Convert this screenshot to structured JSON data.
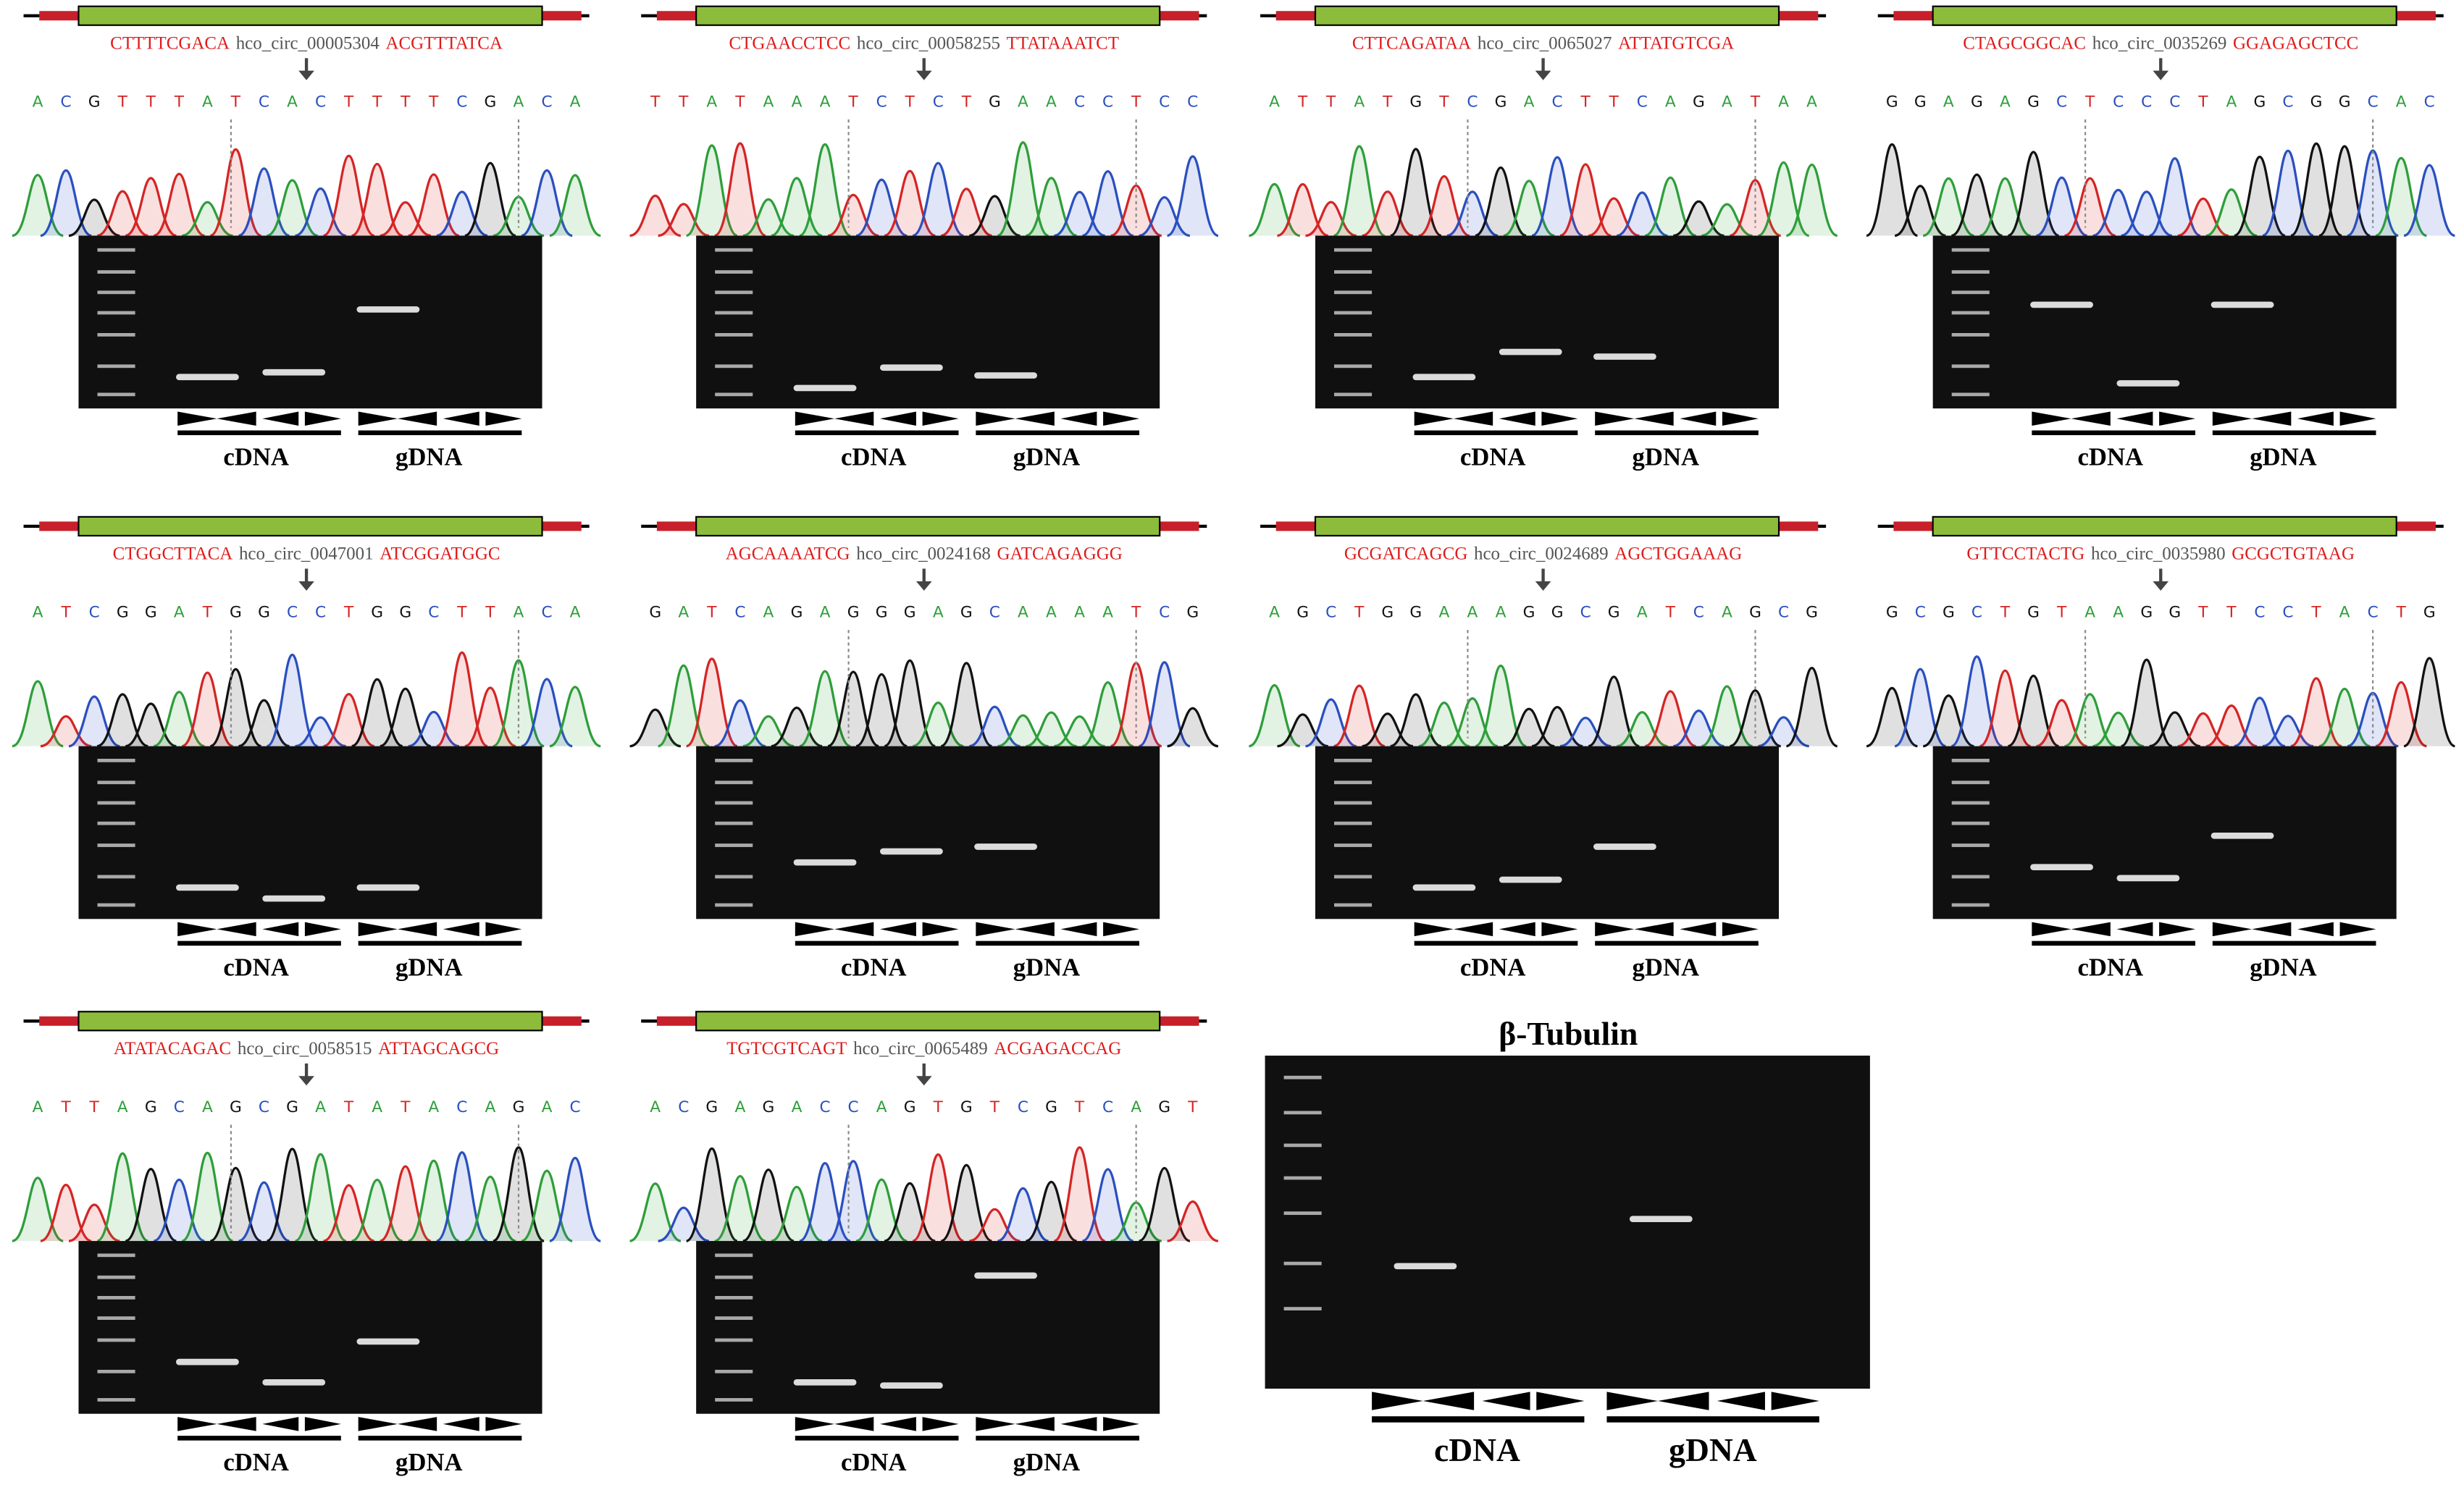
{
  "panels": [
    {
      "left": "CTTTTCGACA",
      "circ_id": "hco_circ_00005304",
      "right": "ACGTTTATCA",
      "sequence": [
        "A",
        "C",
        "G",
        "T",
        "T",
        "T",
        "A",
        "T",
        "C",
        "A",
        "C",
        "T",
        "T",
        "T",
        "T",
        "C",
        "G",
        "A",
        "C",
        "A"
      ],
      "labels": [
        "cDNA",
        "gDNA"
      ]
    },
    {
      "left": "CTGAACCTCC",
      "circ_id": "hco_circ_00058255",
      "right": "TTATAAATCT",
      "sequence": [
        "T",
        "T",
        "A",
        "T",
        "A",
        "A",
        "A",
        "T",
        "C",
        "T",
        "C",
        "T",
        "G",
        "A",
        "A",
        "C",
        "C",
        "T",
        "C",
        "C"
      ],
      "labels": [
        "cDNA",
        "gDNA"
      ]
    },
    {
      "left": "CTTCAGATAA",
      "circ_id": "hco_circ_0065027",
      "right": "ATTATGTCGA",
      "sequence": [
        "A",
        "T",
        "T",
        "A",
        "T",
        "G",
        "T",
        "C",
        "G",
        "A",
        "C",
        "T",
        "T",
        "C",
        "A",
        "G",
        "A",
        "T",
        "A",
        "A"
      ],
      "labels": [
        "cDNA",
        "gDNA"
      ]
    },
    {
      "left": "CTAGCGGCAC",
      "circ_id": "hco_circ_0035269",
      "right": "GGAGAGCTCC",
      "sequence": [
        "G",
        "G",
        "A",
        "G",
        "A",
        "G",
        "C",
        "T",
        "C",
        "C",
        "C",
        "T",
        "A",
        "G",
        "C",
        "G",
        "G",
        "C",
        "A",
        "C"
      ],
      "labels": [
        "cDNA",
        "gDNA"
      ]
    },
    {
      "left": "CTGGCTTACA",
      "circ_id": "hco_circ_0047001",
      "right": "ATCGGATGGC",
      "sequence": [
        "A",
        "T",
        "C",
        "G",
        "G",
        "A",
        "T",
        "G",
        "G",
        "C",
        "C",
        "T",
        "G",
        "G",
        "C",
        "T",
        "T",
        "A",
        "C",
        "A"
      ],
      "labels": [
        "cDNA",
        "gDNA"
      ]
    },
    {
      "left": "AGCAAAATCG",
      "circ_id": "hco_circ_0024168",
      "right": "GATCAGAGGG",
      "sequence": [
        "G",
        "A",
        "T",
        "C",
        "A",
        "G",
        "A",
        "G",
        "G",
        "G",
        "A",
        "G",
        "C",
        "A",
        "A",
        "A",
        "A",
        "T",
        "C",
        "G"
      ],
      "labels": [
        "cDNA",
        "gDNA"
      ]
    },
    {
      "left": "GCGATCAGCG",
      "circ_id": "hco_circ_0024689",
      "right": "AGCTGGAAAG",
      "sequence": [
        "A",
        "G",
        "C",
        "T",
        "G",
        "G",
        "A",
        "A",
        "A",
        "G",
        "G",
        "C",
        "G",
        "A",
        "T",
        "C",
        "A",
        "G",
        "C",
        "G"
      ],
      "labels": [
        "cDNA",
        "gDNA"
      ]
    },
    {
      "left": "GTTCCTACTG",
      "circ_id": "hco_circ_0035980",
      "right": "GCGCTGTAAG",
      "sequence": [
        "G",
        "C",
        "G",
        "C",
        "T",
        "G",
        "T",
        "A",
        "A",
        "G",
        "G",
        "T",
        "T",
        "C",
        "C",
        "T",
        "A",
        "C",
        "T",
        "G"
      ],
      "labels": [
        "cDNA",
        "gDNA"
      ]
    },
    {
      "left": "ATATACAGAC",
      "circ_id": "hco_circ_0058515",
      "right": "ATTAGCAGCG",
      "sequence": [
        "A",
        "T",
        "T",
        "A",
        "G",
        "C",
        "A",
        "G",
        "C",
        "G",
        "A",
        "T",
        "A",
        "T",
        "A",
        "C",
        "A",
        "G",
        "A",
        "C"
      ],
      "labels": [
        "cDNA",
        "gDNA"
      ]
    },
    {
      "left": "TGTCGTCAGT",
      "circ_id": "hco_circ_0065489",
      "right": "ACGAGACCAG",
      "sequence": [
        "A",
        "C",
        "G",
        "A",
        "G",
        "A",
        "C",
        "C",
        "A",
        "G",
        "T",
        "G",
        "T",
        "C",
        "G",
        "T",
        "C",
        "A",
        "G",
        "T"
      ],
      "labels": [
        "cDNA",
        "gDNA"
      ]
    }
  ],
  "tubulin": {
    "title": "β-Tubulin",
    "labels": [
      "cDNA",
      "gDNA"
    ]
  }
}
